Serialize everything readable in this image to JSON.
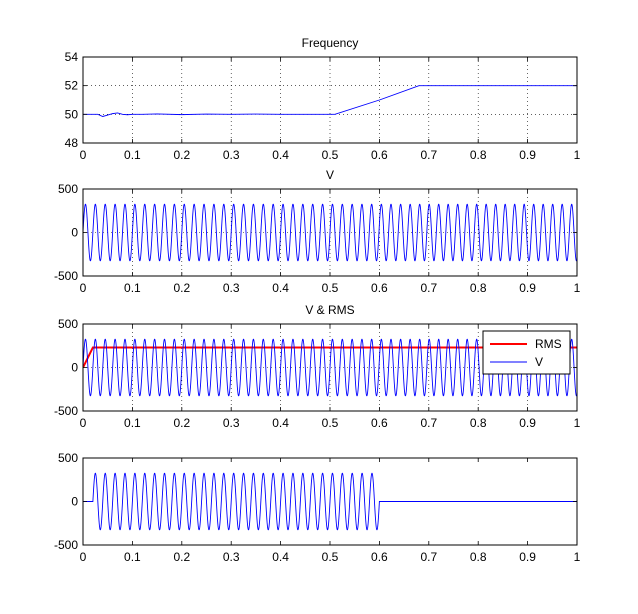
{
  "chart_data": [
    {
      "type": "line",
      "title": "Frequency",
      "xlabel": "",
      "ylabel": "",
      "xlim": [
        0,
        1
      ],
      "ylim": [
        48,
        54
      ],
      "xticks": [
        "0",
        "0.1",
        "0.2",
        "0.3",
        "0.4",
        "0.5",
        "0.6",
        "0.7",
        "0.8",
        "0.9",
        "1"
      ],
      "yticks": [
        "48",
        "50",
        "52",
        "54"
      ],
      "grid": true,
      "series": [
        {
          "color": "#0000ff",
          "x": [
            0,
            0.03,
            0.04,
            0.05,
            0.06,
            0.07,
            0.08,
            0.09,
            0.1,
            0.12,
            0.15,
            0.2,
            0.25,
            0.3,
            0.35,
            0.4,
            0.45,
            0.5,
            0.51,
            0.6,
            0.68,
            0.7,
            0.8,
            0.9,
            1.0
          ],
          "y": [
            50,
            50,
            49.85,
            49.95,
            50.05,
            50.1,
            50.0,
            49.97,
            50.0,
            50.0,
            50.03,
            49.98,
            50.02,
            50.0,
            50.02,
            50.0,
            50.0,
            50.0,
            50.0,
            51.0,
            52.0,
            52.0,
            52.0,
            52.0,
            52.0
          ]
        }
      ]
    },
    {
      "type": "line",
      "title": "V",
      "xlabel": "",
      "ylabel": "",
      "xlim": [
        0,
        1
      ],
      "ylim": [
        -500,
        500
      ],
      "xticks": [
        "0",
        "0.1",
        "0.2",
        "0.3",
        "0.4",
        "0.5",
        "0.6",
        "0.7",
        "0.8",
        "0.9",
        "1"
      ],
      "yticks": [
        "-500",
        "0",
        "500"
      ],
      "grid": true,
      "series": [
        {
          "color": "#0000ff",
          "waveform": "sine",
          "amplitude": 325,
          "frequency_start": 50,
          "frequency_end": 52,
          "x_start": 0,
          "x_end": 1
        }
      ]
    },
    {
      "type": "line",
      "title": "V & RMS",
      "xlabel": "",
      "ylabel": "",
      "xlim": [
        0,
        1
      ],
      "ylim": [
        -500,
        500
      ],
      "xticks": [
        "0",
        "0.1",
        "0.2",
        "0.3",
        "0.4",
        "0.5",
        "0.6",
        "0.7",
        "0.8",
        "0.9",
        "1"
      ],
      "yticks": [
        "-500",
        "0",
        "500"
      ],
      "grid": true,
      "legend": "top-right",
      "series": [
        {
          "name": "RMS",
          "color": "#ff0000",
          "x": [
            0,
            0.02,
            1
          ],
          "y": [
            0,
            230,
            230
          ]
        },
        {
          "name": "V",
          "color": "#0000ff",
          "waveform": "sine",
          "amplitude": 325,
          "frequency_start": 50,
          "frequency_end": 52,
          "x_start": 0,
          "x_end": 1
        }
      ]
    },
    {
      "type": "line",
      "title": "",
      "xlabel": "",
      "ylabel": "",
      "xlim": [
        0,
        1
      ],
      "ylim": [
        -500,
        500
      ],
      "xticks": [
        "0",
        "0.1",
        "0.2",
        "0.3",
        "0.4",
        "0.5",
        "0.6",
        "0.7",
        "0.8",
        "0.9",
        "1"
      ],
      "yticks": [
        "-500",
        "0",
        "500"
      ],
      "grid": false,
      "series": [
        {
          "color": "#0000ff",
          "waveform": "sine",
          "amplitude": 325,
          "frequency_start": 50,
          "frequency_end": 50,
          "x_start": 0.02,
          "x_end": 0.6,
          "zero_after": 0.6
        }
      ]
    }
  ]
}
